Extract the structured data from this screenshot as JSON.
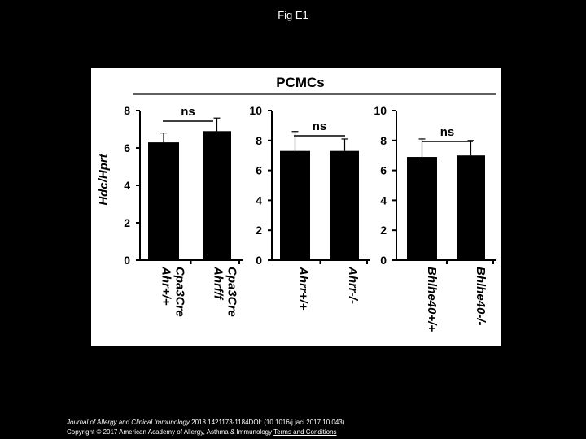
{
  "slide": {
    "title": "Fig E1"
  },
  "figure": {
    "header": "PCMCs",
    "ylabel": "Hdc/Hprt"
  },
  "footer": {
    "citation_journal": "Journal of Allergy and Clinical Immunology",
    "citation_rest": " 2018 1421173-1184DOI: (10.1016/j.jaci.2017.10.043)",
    "copyright": "Copyright © 2017 American Academy of Allergy, Asthma & Immunology",
    "terms": "Terms and Conditions"
  },
  "chart_data": [
    {
      "type": "bar",
      "categories": [
        [
          "Ahr+/+",
          "Cpa3Cre"
        ],
        [
          "Ahrf/f",
          "Cpa3Cre"
        ]
      ],
      "values": [
        6.3,
        6.9
      ],
      "error": [
        0.5,
        0.7
      ],
      "ylim": [
        0,
        8
      ],
      "yticks": [
        0,
        2,
        4,
        6,
        8
      ],
      "significance": "ns",
      "ylabel": "Hdc/Hprt"
    },
    {
      "type": "bar",
      "categories": [
        [
          "Ahrr+/+"
        ],
        [
          "Ahrr-/-"
        ]
      ],
      "values": [
        7.3,
        7.3
      ],
      "error": [
        1.3,
        0.8
      ],
      "ylim": [
        0,
        10
      ],
      "yticks": [
        0,
        2,
        4,
        6,
        8,
        10
      ],
      "significance": "ns"
    },
    {
      "type": "bar",
      "categories": [
        [
          "Bhlhe40+/+"
        ],
        [
          "Bhlhe40-/-"
        ]
      ],
      "values": [
        6.9,
        7.0
      ],
      "error": [
        1.2,
        1.0
      ],
      "ylim": [
        0,
        10
      ],
      "yticks": [
        0,
        2,
        4,
        6,
        8,
        10
      ],
      "significance": "ns"
    }
  ]
}
